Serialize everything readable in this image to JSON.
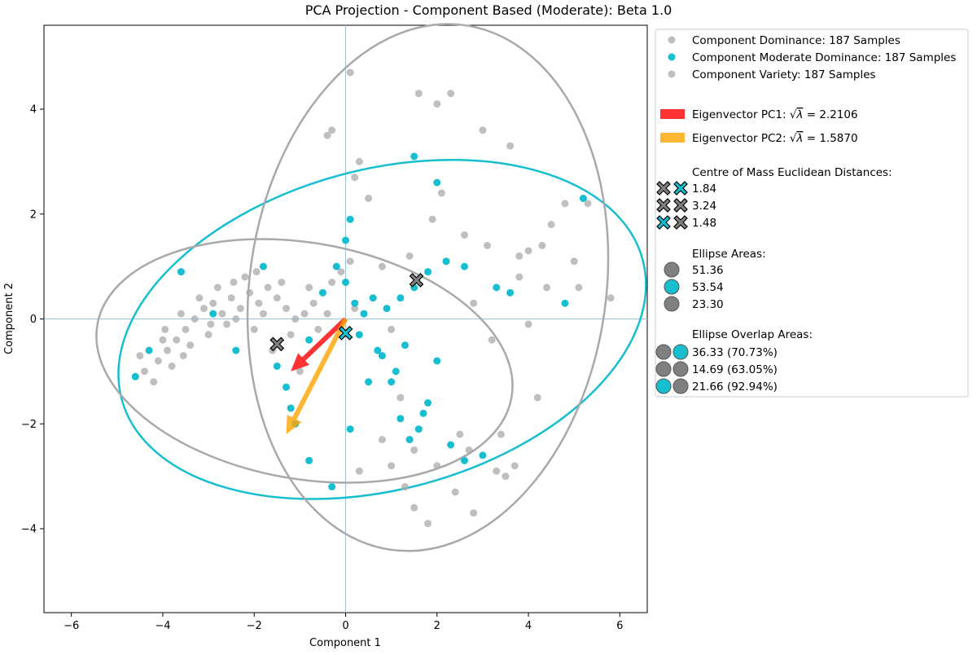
{
  "chart_data": {
    "type": "scatter",
    "title": "PCA Projection - Component Based (Moderate): Beta 1.0",
    "xlabel": "Component 1",
    "ylabel": "Component 2",
    "xlim": [
      -6.6,
      6.6
    ],
    "ylim": [
      -5.6,
      5.6
    ],
    "xticks": [
      -6,
      -4,
      -2,
      0,
      2,
      4,
      6
    ],
    "yticks": [
      -4,
      -2,
      0,
      2,
      4
    ],
    "xtick_labels": [
      "−6",
      "−4",
      "−2",
      "0",
      "2",
      "4",
      "6"
    ],
    "ytick_labels": [
      "−4",
      "−2",
      "0",
      "2",
      "4"
    ],
    "grid": false,
    "legend_position": "outside-right",
    "series": [
      {
        "name": "Component Dominance: 187 Samples",
        "color": "#a9a9a9",
        "cluster_center": [
          -1.7,
          0.1
        ],
        "points": [
          [
            -4.4,
            -1.0
          ],
          [
            -4.1,
            -0.8
          ],
          [
            -3.9,
            -0.6
          ],
          [
            -3.7,
            -0.4
          ],
          [
            -3.5,
            -0.2
          ],
          [
            -3.3,
            0.0
          ],
          [
            -3.1,
            0.2
          ],
          [
            -2.9,
            0.3
          ],
          [
            -2.7,
            0.1
          ],
          [
            -2.5,
            0.4
          ],
          [
            -2.3,
            0.2
          ],
          [
            -2.1,
            0.5
          ],
          [
            -1.9,
            0.3
          ],
          [
            -1.7,
            0.6
          ],
          [
            -1.5,
            0.4
          ],
          [
            -1.3,
            0.2
          ],
          [
            -1.1,
            0.0
          ],
          [
            -0.9,
            0.1
          ],
          [
            -0.7,
            0.3
          ],
          [
            -0.5,
            0.5
          ],
          [
            -0.3,
            0.7
          ],
          [
            -0.1,
            0.9
          ],
          [
            0.1,
            1.1
          ],
          [
            -4.2,
            -1.2
          ],
          [
            -4.0,
            -0.4
          ],
          [
            -3.8,
            -0.9
          ],
          [
            -3.6,
            0.1
          ],
          [
            -3.4,
            -0.5
          ],
          [
            -3.2,
            0.4
          ],
          [
            -3.0,
            -0.3
          ],
          [
            -2.8,
            0.6
          ],
          [
            -2.6,
            -0.1
          ],
          [
            -2.4,
            0.0
          ],
          [
            -2.2,
            0.8
          ],
          [
            -2.0,
            -0.2
          ],
          [
            -1.8,
            0.1
          ],
          [
            -1.6,
            -0.6
          ],
          [
            -1.4,
            0.7
          ],
          [
            -1.2,
            -0.3
          ],
          [
            -1.0,
            -1.0
          ],
          [
            -0.8,
            0.6
          ],
          [
            -4.5,
            -0.7
          ],
          [
            -3.95,
            -0.2
          ],
          [
            -3.55,
            -0.7
          ],
          [
            -2.95,
            -0.1
          ],
          [
            -2.45,
            0.7
          ],
          [
            -1.95,
            0.9
          ],
          [
            -0.6,
            -0.2
          ],
          [
            -0.4,
            0.1
          ],
          [
            0.2,
            0.2
          ]
        ]
      },
      {
        "name": "Component Moderate Dominance: 187 Samples",
        "color": "#17becf",
        "cluster_center": [
          0.0,
          -0.3
        ],
        "points": [
          [
            -4.6,
            -1.1
          ],
          [
            -4.3,
            -0.6
          ],
          [
            -3.6,
            0.9
          ],
          [
            -2.9,
            0.1
          ],
          [
            -2.4,
            -0.6
          ],
          [
            -1.8,
            1.0
          ],
          [
            -1.5,
            -0.9
          ],
          [
            -1.3,
            -1.3
          ],
          [
            -1.2,
            -1.7
          ],
          [
            -1.1,
            -2.0
          ],
          [
            -0.8,
            -2.7
          ],
          [
            -0.3,
            -3.2
          ],
          [
            0.1,
            -2.1
          ],
          [
            0.5,
            -1.2
          ],
          [
            0.6,
            0.4
          ],
          [
            0.8,
            -0.7
          ],
          [
            1.0,
            -1.2
          ],
          [
            1.2,
            -1.9
          ],
          [
            1.3,
            -0.5
          ],
          [
            1.4,
            -2.3
          ],
          [
            1.6,
            -2.1
          ],
          [
            1.8,
            -1.6
          ],
          [
            2.0,
            -0.8
          ],
          [
            2.3,
            -2.4
          ],
          [
            2.6,
            -2.7
          ],
          [
            3.0,
            -2.6
          ],
          [
            3.3,
            0.6
          ],
          [
            3.6,
            0.5
          ],
          [
            4.8,
            0.3
          ],
          [
            5.2,
            2.3
          ],
          [
            2.6,
            1.0
          ],
          [
            2.2,
            1.1
          ],
          [
            1.8,
            0.9
          ],
          [
            1.5,
            0.6
          ],
          [
            1.2,
            0.4
          ],
          [
            0.9,
            0.2
          ],
          [
            0.4,
            0.1
          ],
          [
            0.2,
            0.3
          ],
          [
            0.0,
            0.7
          ],
          [
            -0.2,
            1.0
          ],
          [
            0.0,
            1.5
          ],
          [
            0.1,
            1.9
          ],
          [
            1.5,
            3.1
          ],
          [
            2.0,
            2.6
          ],
          [
            -0.5,
            0.5
          ],
          [
            -0.8,
            -0.4
          ],
          [
            0.3,
            -0.3
          ],
          [
            0.7,
            -0.6
          ],
          [
            1.1,
            -1.0
          ],
          [
            1.7,
            -1.8
          ]
        ]
      },
      {
        "name": "Component Variety: 187 Samples",
        "color": "#a9a9a9",
        "cluster_center": [
          1.5,
          0.7
        ],
        "points": [
          [
            -0.4,
            3.5
          ],
          [
            -0.3,
            3.6
          ],
          [
            0.1,
            4.7
          ],
          [
            0.2,
            2.7
          ],
          [
            0.3,
            3.0
          ],
          [
            0.5,
            2.3
          ],
          [
            0.8,
            1.0
          ],
          [
            1.0,
            -0.2
          ],
          [
            1.2,
            -1.5
          ],
          [
            1.5,
            -2.5
          ],
          [
            1.6,
            4.3
          ],
          [
            2.0,
            4.1
          ],
          [
            2.3,
            4.3
          ],
          [
            2.6,
            1.6
          ],
          [
            2.8,
            0.3
          ],
          [
            3.0,
            3.6
          ],
          [
            3.1,
            1.4
          ],
          [
            3.2,
            -0.4
          ],
          [
            3.4,
            -2.2
          ],
          [
            3.6,
            3.3
          ],
          [
            3.8,
            1.2
          ],
          [
            4.0,
            -0.1
          ],
          [
            4.2,
            -1.5
          ],
          [
            4.3,
            1.4
          ],
          [
            4.5,
            1.8
          ],
          [
            4.8,
            2.2
          ],
          [
            5.0,
            1.1
          ],
          [
            5.1,
            0.6
          ],
          [
            5.3,
            2.2
          ],
          [
            5.8,
            0.4
          ],
          [
            2.8,
            -3.7
          ],
          [
            2.4,
            -3.3
          ],
          [
            1.8,
            -3.9
          ],
          [
            1.5,
            -3.6
          ],
          [
            1.3,
            -3.2
          ],
          [
            0.3,
            -2.9
          ],
          [
            0.8,
            -2.3
          ],
          [
            1.0,
            -2.8
          ],
          [
            2.0,
            -2.8
          ],
          [
            2.5,
            -2.2
          ],
          [
            3.5,
            -3.0
          ],
          [
            3.3,
            -2.9
          ],
          [
            3.7,
            -2.8
          ],
          [
            2.7,
            -2.5
          ],
          [
            1.9,
            1.9
          ],
          [
            2.1,
            2.4
          ],
          [
            1.4,
            1.2
          ],
          [
            4.0,
            1.3
          ],
          [
            3.8,
            0.8
          ],
          [
            4.4,
            0.6
          ]
        ]
      }
    ],
    "centres_of_mass": [
      {
        "x": -1.5,
        "y": -0.48,
        "color": "#808080"
      },
      {
        "x": 0.0,
        "y": -0.27,
        "color": "#17becf"
      },
      {
        "x": 1.55,
        "y": 0.74,
        "color": "#808080"
      }
    ],
    "eigenvectors": [
      {
        "name": "Eigenvector PC1",
        "value_label": "= 2.2106",
        "color": "#ff0000",
        "from": [
          0,
          0
        ],
        "to": [
          -1.2,
          -1.0
        ]
      },
      {
        "name": "Eigenvector PC2",
        "value_label": "= 1.5870",
        "color": "#ffa500",
        "from": [
          0,
          0
        ],
        "to": [
          -1.3,
          -2.2
        ]
      }
    ],
    "ellipses": [
      {
        "color": "#17becf",
        "center": [
          0.8,
          -0.2
        ],
        "rx": 5.9,
        "ry": 3.05,
        "angle": 15
      },
      {
        "color": "#a9a9a9",
        "center": [
          -0.9,
          -0.8
        ],
        "rx": 4.6,
        "ry": 2.25,
        "angle": -10
      },
      {
        "color": "#a9a9a9",
        "center": [
          1.8,
          0.6
        ],
        "rx": 3.9,
        "ry": 5.05,
        "angle": -8
      }
    ],
    "legend": {
      "distances_title": "Centre of Mass Euclidean Distances:",
      "distances": [
        {
          "value": "1.84",
          "colors": [
            "#808080",
            "#17becf"
          ]
        },
        {
          "value": "3.24",
          "colors": [
            "#808080",
            "#808080"
          ]
        },
        {
          "value": "1.48",
          "colors": [
            "#17becf",
            "#808080"
          ]
        }
      ],
      "areas_title": "Ellipse Areas:",
      "areas": [
        {
          "value": "51.36",
          "color": "#808080"
        },
        {
          "value": "53.54",
          "color": "#17becf"
        },
        {
          "value": "23.30",
          "color": "#808080"
        }
      ],
      "overlaps_title": "Ellipse Overlap Areas:",
      "overlaps": [
        {
          "value": "36.33 (70.73%)",
          "colors": [
            "#808080",
            "#17becf"
          ]
        },
        {
          "value": "14.69 (63.05%)",
          "colors": [
            "#808080",
            "#808080"
          ]
        },
        {
          "value": "21.66 (92.94%)",
          "colors": [
            "#17becf",
            "#808080"
          ]
        }
      ]
    }
  }
}
